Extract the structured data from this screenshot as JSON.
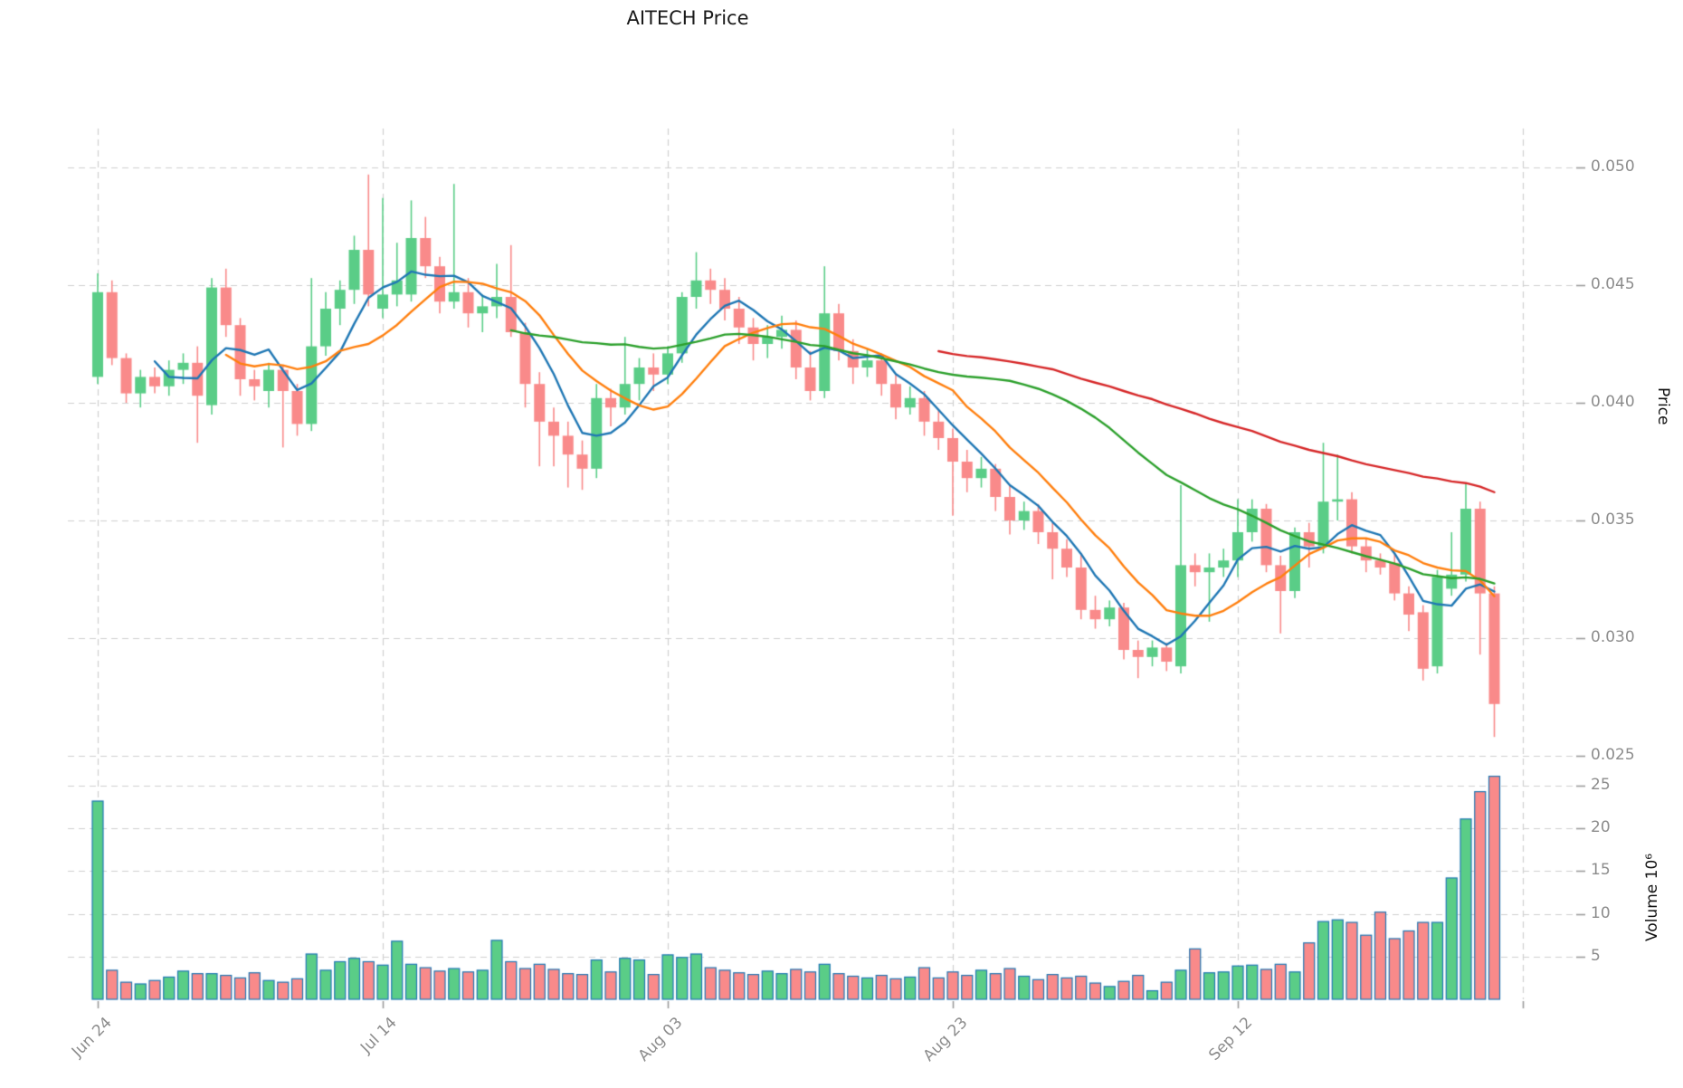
{
  "title": "AITECH Price",
  "axes": {
    "price_axis_label": "Price",
    "volume_axis_label": "Volume  10⁶",
    "price_ticks": [
      {
        "label": "0.050",
        "value": 0.05
      },
      {
        "label": "0.045",
        "value": 0.045
      },
      {
        "label": "0.040",
        "value": 0.04
      },
      {
        "label": "0.035",
        "value": 0.035
      },
      {
        "label": "0.030",
        "value": 0.03
      },
      {
        "label": "0.025",
        "value": 0.025
      }
    ],
    "volume_ticks": [
      {
        "label": "25",
        "value": 25
      },
      {
        "label": "20",
        "value": 20
      },
      {
        "label": "15",
        "value": 15
      },
      {
        "label": "10",
        "value": 10
      },
      {
        "label": "5",
        "value": 5
      }
    ],
    "x_ticks": [
      {
        "label": "Jun 24",
        "index": 0
      },
      {
        "label": "Jul 14",
        "index": 20
      },
      {
        "label": "Aug 03",
        "index": 40
      },
      {
        "label": "Aug 23",
        "index": 60
      },
      {
        "label": "Sep 12",
        "index": 80
      },
      {
        "label": "",
        "index": 100
      }
    ]
  },
  "style": {
    "up_color": "#5acd87",
    "down_color": "#f98a8a",
    "volume_edge_color": "#1f77b4",
    "grid_color": "#cfcfcf",
    "tick_mark_color": "#9a9a9a",
    "background": "#ffffff"
  },
  "chart_data": {
    "type": "candlestick-with-volume",
    "title": "AITECH Price",
    "xlabel": "",
    "ylabel_price": "Price",
    "ylabel_volume": "Volume 10^6",
    "start_date_label": "Jun 24",
    "interval": "1 day",
    "num_candles": 99,
    "price_scale": 0.0001,
    "volume_unit": "millions",
    "price_ylim": [
      0.025,
      0.05
    ],
    "grid": "dashed",
    "columns": [
      "open",
      "high",
      "low",
      "close",
      "volume_M"
    ],
    "candles": [
      [
        411,
        455,
        408,
        447,
        23.2
      ],
      [
        447,
        452,
        416,
        419,
        3.4
      ],
      [
        419,
        421,
        400,
        404,
        2.0
      ],
      [
        404,
        414,
        398,
        411,
        1.8
      ],
      [
        411,
        415,
        404,
        407,
        2.2
      ],
      [
        407,
        418,
        403,
        414,
        2.6
      ],
      [
        414,
        421,
        408,
        417,
        3.3
      ],
      [
        417,
        424,
        383,
        403,
        3.0
      ],
      [
        399,
        453,
        395,
        449,
        3.0
      ],
      [
        449,
        457,
        428,
        433,
        2.8
      ],
      [
        433,
        436,
        403,
        410,
        2.5
      ],
      [
        410,
        414,
        401,
        407,
        3.1
      ],
      [
        405,
        417,
        398,
        414,
        2.2
      ],
      [
        414,
        416,
        381,
        405,
        2.0
      ],
      [
        405,
        408,
        386,
        391,
        2.4
      ],
      [
        391,
        453,
        388,
        424,
        5.3
      ],
      [
        424,
        447,
        420,
        440,
        3.4
      ],
      [
        440,
        452,
        433,
        448,
        4.4
      ],
      [
        448,
        471,
        442,
        465,
        4.8
      ],
      [
        465,
        497,
        441,
        446,
        4.4
      ],
      [
        440,
        487,
        436,
        446,
        4.0
      ],
      [
        446,
        468,
        441,
        452,
        6.8
      ],
      [
        446,
        486,
        443,
        470,
        4.1
      ],
      [
        470,
        479,
        453,
        458,
        3.7
      ],
      [
        458,
        462,
        438,
        443,
        3.3
      ],
      [
        443,
        493,
        440,
        447,
        3.6
      ],
      [
        447,
        453,
        432,
        438,
        3.2
      ],
      [
        438,
        446,
        430,
        441,
        3.4
      ],
      [
        441,
        459,
        436,
        445,
        6.9
      ],
      [
        445,
        467,
        428,
        430,
        4.4
      ],
      [
        430,
        434,
        398,
        408,
        3.6
      ],
      [
        408,
        413,
        373,
        392,
        4.1
      ],
      [
        392,
        398,
        373,
        386,
        3.5
      ],
      [
        386,
        392,
        364,
        378,
        3.0
      ],
      [
        378,
        384,
        363,
        372,
        2.9
      ],
      [
        372,
        408,
        368,
        402,
        4.6
      ],
      [
        402,
        406,
        390,
        398,
        3.2
      ],
      [
        398,
        428,
        395,
        408,
        4.8
      ],
      [
        408,
        419,
        401,
        415,
        4.6
      ],
      [
        415,
        421,
        405,
        412,
        2.9
      ],
      [
        412,
        424,
        408,
        421,
        5.2
      ],
      [
        421,
        447,
        417,
        445,
        4.9
      ],
      [
        445,
        464,
        440,
        452,
        5.3
      ],
      [
        452,
        457,
        442,
        448,
        3.7
      ],
      [
        448,
        453,
        435,
        440,
        3.4
      ],
      [
        440,
        445,
        425,
        432,
        3.1
      ],
      [
        432,
        436,
        418,
        425,
        2.9
      ],
      [
        425,
        433,
        419,
        428,
        3.3
      ],
      [
        428,
        437,
        423,
        431,
        3.0
      ],
      [
        431,
        435,
        410,
        415,
        3.5
      ],
      [
        415,
        422,
        401,
        405,
        3.2
      ],
      [
        405,
        458,
        402,
        438,
        4.1
      ],
      [
        438,
        442,
        418,
        422,
        3.0
      ],
      [
        422,
        427,
        408,
        415,
        2.7
      ],
      [
        415,
        423,
        411,
        418,
        2.5
      ],
      [
        418,
        421,
        403,
        408,
        2.8
      ],
      [
        408,
        412,
        393,
        398,
        2.4
      ],
      [
        398,
        407,
        395,
        402,
        2.6
      ],
      [
        402,
        405,
        386,
        392,
        3.7
      ],
      [
        392,
        397,
        380,
        385,
        2.5
      ],
      [
        385,
        389,
        352,
        375,
        3.2
      ],
      [
        375,
        380,
        362,
        368,
        2.8
      ],
      [
        368,
        377,
        364,
        372,
        3.4
      ],
      [
        372,
        374,
        354,
        360,
        3.0
      ],
      [
        360,
        365,
        344,
        350,
        3.6
      ],
      [
        350,
        358,
        346,
        354,
        2.7
      ],
      [
        354,
        357,
        340,
        345,
        2.3
      ],
      [
        345,
        349,
        325,
        338,
        2.9
      ],
      [
        338,
        342,
        326,
        330,
        2.5
      ],
      [
        330,
        336,
        308,
        312,
        2.7
      ],
      [
        312,
        318,
        304,
        308,
        1.9
      ],
      [
        308,
        316,
        305,
        313,
        1.5
      ],
      [
        313,
        315,
        291,
        295,
        2.1
      ],
      [
        295,
        299,
        283,
        292,
        2.8
      ],
      [
        292,
        299,
        288,
        296,
        1.0
      ],
      [
        296,
        298,
        286,
        290,
        2.0
      ],
      [
        288,
        365,
        285,
        331,
        3.4
      ],
      [
        331,
        336,
        322,
        328,
        5.9
      ],
      [
        328,
        336,
        307,
        330,
        3.1
      ],
      [
        330,
        338,
        326,
        333,
        3.2
      ],
      [
        333,
        359,
        326,
        345,
        3.9
      ],
      [
        345,
        359,
        341,
        355,
        4.0
      ],
      [
        355,
        357,
        328,
        331,
        3.5
      ],
      [
        331,
        335,
        302,
        320,
        4.1
      ],
      [
        320,
        347,
        317,
        345,
        3.2
      ],
      [
        345,
        349,
        330,
        339,
        6.6
      ],
      [
        339,
        383,
        336,
        358,
        9.1
      ],
      [
        358,
        378,
        350,
        359,
        9.3
      ],
      [
        359,
        362,
        336,
        339,
        9.0
      ],
      [
        339,
        342,
        328,
        333,
        7.5
      ],
      [
        333,
        336,
        327,
        330,
        10.2
      ],
      [
        332,
        336,
        316,
        319,
        7.1
      ],
      [
        319,
        322,
        303,
        310,
        8.0
      ],
      [
        311,
        314,
        282,
        287,
        9.0
      ],
      [
        288,
        329,
        285,
        326,
        9.0
      ],
      [
        321,
        345,
        318,
        327,
        14.2
      ],
      [
        327,
        366,
        324,
        355,
        21.1
      ],
      [
        355,
        358,
        293,
        319,
        24.3
      ],
      [
        319,
        322,
        258,
        272,
        26.1
      ]
    ],
    "moving_averages": [
      {
        "name": "SMA5",
        "window": 5,
        "color": "#1f77b4"
      },
      {
        "name": "SMA10",
        "window": 10,
        "color": "#ff7f0e"
      },
      {
        "name": "SMA30",
        "window": 30,
        "color": "#2ca02c"
      },
      {
        "name": "SMA60",
        "window": 60,
        "color": "#d62728"
      }
    ],
    "legend": "none"
  }
}
